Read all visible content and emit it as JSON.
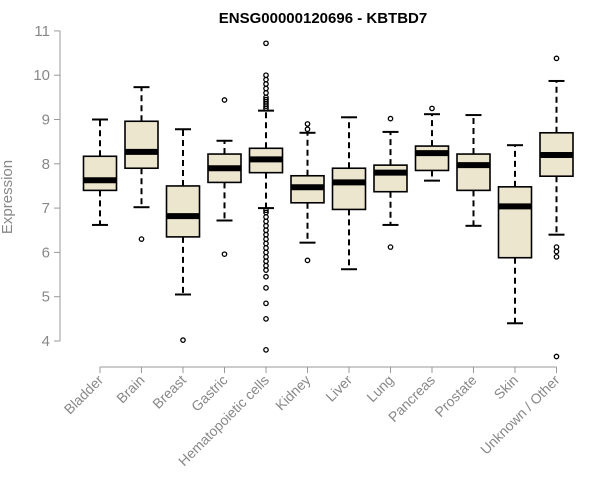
{
  "chart_data": {
    "type": "boxplot",
    "title": "ENSG00000120696 - KBTBD7",
    "ylabel": "Expression",
    "xlabel": "",
    "ylim": [
      3.6,
      11.0
    ],
    "yticks": [
      4,
      5,
      6,
      7,
      8,
      9,
      10,
      11
    ],
    "box_fill": "#ede6cf",
    "median_color": "#000000",
    "categories": [
      "Bladder",
      "Brain",
      "Breast",
      "Gastric",
      "Hematopoietic cells",
      "Kidney",
      "Liver",
      "Lung",
      "Pancreas",
      "Prostate",
      "Skin",
      "Unknown / Other"
    ],
    "series": [
      {
        "name": "Bladder",
        "whisker_low": 6.62,
        "q1": 7.4,
        "median": 7.63,
        "q3": 8.17,
        "whisker_high": 9.0,
        "outliers": []
      },
      {
        "name": "Brain",
        "whisker_low": 7.02,
        "q1": 7.9,
        "median": 8.27,
        "q3": 8.96,
        "whisker_high": 9.73,
        "outliers": [
          6.3
        ]
      },
      {
        "name": "Breast",
        "whisker_low": 5.05,
        "q1": 6.35,
        "median": 6.82,
        "q3": 7.5,
        "whisker_high": 8.78,
        "outliers": [
          4.02
        ]
      },
      {
        "name": "Gastric",
        "whisker_low": 6.72,
        "q1": 7.58,
        "median": 7.9,
        "q3": 8.22,
        "whisker_high": 8.52,
        "outliers": [
          9.44,
          5.96
        ]
      },
      {
        "name": "Hematopoietic cells",
        "whisker_low": 7.0,
        "q1": 7.8,
        "median": 8.1,
        "q3": 8.35,
        "whisker_high": 9.2,
        "outliers": [
          10.72,
          10.0,
          9.9,
          9.8,
          9.7,
          9.6,
          9.5,
          9.45,
          9.4,
          9.35,
          9.3,
          9.25,
          6.95,
          6.9,
          6.8,
          6.7,
          6.6,
          6.5,
          6.4,
          6.3,
          6.2,
          6.1,
          6.0,
          5.9,
          5.8,
          5.7,
          5.6,
          5.45,
          5.2,
          4.85,
          4.5,
          3.8
        ]
      },
      {
        "name": "Kidney",
        "whisker_low": 6.22,
        "q1": 7.12,
        "median": 7.47,
        "q3": 7.73,
        "whisker_high": 8.7,
        "outliers": [
          8.9,
          8.78,
          5.82
        ]
      },
      {
        "name": "Liver",
        "whisker_low": 5.62,
        "q1": 6.97,
        "median": 7.58,
        "q3": 7.9,
        "whisker_high": 9.05,
        "outliers": []
      },
      {
        "name": "Lung",
        "whisker_low": 6.62,
        "q1": 7.37,
        "median": 7.8,
        "q3": 7.97,
        "whisker_high": 8.72,
        "outliers": [
          9.02,
          6.12
        ]
      },
      {
        "name": "Pancreas",
        "whisker_low": 7.62,
        "q1": 7.85,
        "median": 8.24,
        "q3": 8.4,
        "whisker_high": 9.12,
        "outliers": [
          9.25
        ]
      },
      {
        "name": "Prostate",
        "whisker_low": 6.6,
        "q1": 7.4,
        "median": 7.97,
        "q3": 8.22,
        "whisker_high": 9.1,
        "outliers": []
      },
      {
        "name": "Skin",
        "whisker_low": 4.4,
        "q1": 5.88,
        "median": 7.04,
        "q3": 7.48,
        "whisker_high": 8.42,
        "outliers": []
      },
      {
        "name": "Unknown / Other",
        "whisker_low": 6.4,
        "q1": 7.72,
        "median": 8.2,
        "q3": 8.7,
        "whisker_high": 9.87,
        "outliers": [
          10.38,
          6.12,
          6.02,
          5.9,
          3.65
        ]
      }
    ]
  }
}
